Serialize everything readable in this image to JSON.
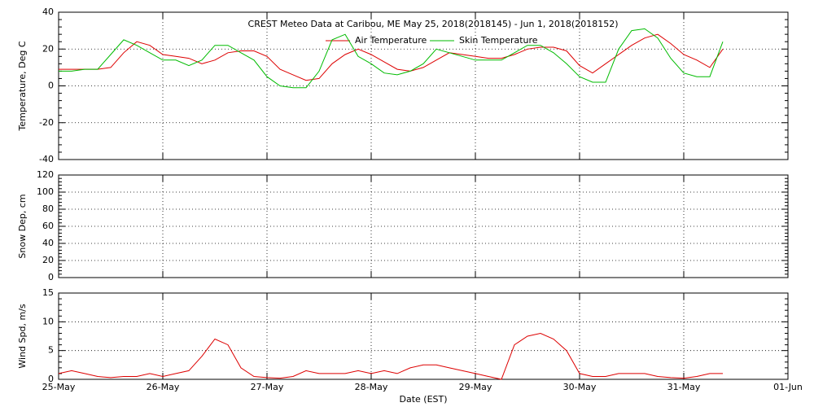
{
  "chart_data": [
    {
      "type": "line",
      "title": "CREST Meteo Data at Caribou, ME   May 25, 2018(2018145) - Jun  1, 2018(2018152)",
      "ylabel": "Temperature, Deg C",
      "ylim": [
        -40,
        40
      ],
      "yticks": [
        -40,
        -20,
        0,
        20,
        40
      ],
      "xlim": [
        0,
        7
      ],
      "xticks": [
        0,
        1,
        2,
        3,
        4,
        5,
        6,
        7
      ],
      "grid": true,
      "x": [
        0,
        0.125,
        0.25,
        0.375,
        0.5,
        0.625,
        0.75,
        0.875,
        1,
        1.125,
        1.25,
        1.375,
        1.5,
        1.625,
        1.75,
        1.875,
        2,
        2.125,
        2.25,
        2.375,
        2.5,
        2.625,
        2.75,
        2.875,
        3,
        3.125,
        3.25,
        3.375,
        3.5,
        3.625,
        3.75,
        3.875,
        4,
        4.125,
        4.25,
        4.375,
        4.5,
        4.625,
        4.75,
        4.875,
        5,
        5.125,
        5.25,
        5.375,
        5.5,
        5.625,
        5.75,
        5.875,
        6,
        6.125,
        6.25,
        6.375
      ],
      "series": [
        {
          "name": "Air Temperature",
          "color": "#dd0000",
          "values": [
            9,
            9,
            9,
            9,
            10,
            18,
            24,
            22,
            17,
            16,
            15,
            12,
            14,
            18,
            19,
            19,
            16,
            9,
            6,
            3,
            4,
            12,
            17,
            20,
            17,
            13,
            9,
            8,
            10,
            14,
            18,
            17,
            16,
            15,
            15,
            17,
            20,
            21,
            21,
            19,
            11,
            7,
            12,
            17,
            22,
            26,
            28,
            23,
            17,
            14,
            10,
            20
          ]
        },
        {
          "name": "Skin Temperature",
          "color": "#00bb00",
          "values": [
            8,
            8,
            9,
            9,
            17,
            25,
            22,
            18,
            14,
            14,
            11,
            14,
            22,
            22,
            18,
            14,
            5,
            0,
            -1,
            -1,
            8,
            25,
            28,
            16,
            12,
            7,
            6,
            8,
            12,
            20,
            18,
            16,
            14,
            14,
            14,
            18,
            22,
            22,
            18,
            12,
            5,
            2,
            2,
            20,
            30,
            31,
            26,
            15,
            7,
            5,
            5,
            24
          ]
        }
      ]
    },
    {
      "type": "line",
      "ylabel": "Snow Dep, cm",
      "ylim": [
        0,
        120
      ],
      "yticks": [
        0,
        20,
        40,
        60,
        80,
        100,
        120
      ],
      "xlim": [
        0,
        7
      ],
      "xticks": [
        0,
        1,
        2,
        3,
        4,
        5,
        6,
        7
      ],
      "grid": true,
      "series": []
    },
    {
      "type": "line",
      "ylabel": "Wind Spd, m/s",
      "xlabel": "Date (EST)",
      "ylim": [
        0,
        15
      ],
      "yticks": [
        0,
        5,
        10,
        15
      ],
      "xlim": [
        0,
        7
      ],
      "xticks": [
        {
          "value": 0,
          "label": "25-May"
        },
        {
          "value": 1,
          "label": "26-May"
        },
        {
          "value": 2,
          "label": "27-May"
        },
        {
          "value": 3,
          "label": "28-May"
        },
        {
          "value": 4,
          "label": "29-May"
        },
        {
          "value": 5,
          "label": "30-May"
        },
        {
          "value": 6,
          "label": "31-May"
        },
        {
          "value": 7,
          "label": "01-Jun"
        }
      ],
      "grid": true,
      "x": [
        0,
        0.125,
        0.25,
        0.375,
        0.5,
        0.625,
        0.75,
        0.875,
        1,
        1.125,
        1.25,
        1.375,
        1.5,
        1.625,
        1.75,
        1.875,
        2,
        2.125,
        2.25,
        2.375,
        2.5,
        2.625,
        2.75,
        2.875,
        3,
        3.125,
        3.25,
        3.375,
        3.5,
        3.625,
        3.75,
        3.875,
        4,
        4.125,
        4.25,
        4.375,
        4.5,
        4.625,
        4.75,
        4.875,
        5,
        5.125,
        5.25,
        5.375,
        5.5,
        5.625,
        5.75,
        5.875,
        6,
        6.125,
        6.25,
        6.375
      ],
      "series": [
        {
          "color": "#dd0000",
          "values": [
            1,
            1.5,
            1,
            0.5,
            0.3,
            0.5,
            0.5,
            1,
            0.5,
            1,
            1.5,
            4,
            7,
            6,
            2,
            0.5,
            0.3,
            0.2,
            0.5,
            1.5,
            1,
            1,
            1,
            1.5,
            1,
            1.5,
            1,
            2,
            2.5,
            2.5,
            2,
            1.5,
            1,
            0.5,
            0,
            6,
            7.5,
            8,
            7,
            5,
            1,
            0.5,
            0.5,
            1,
            1,
            1,
            0.5,
            0.3,
            0.2,
            0.5,
            1,
            1
          ]
        }
      ]
    }
  ]
}
